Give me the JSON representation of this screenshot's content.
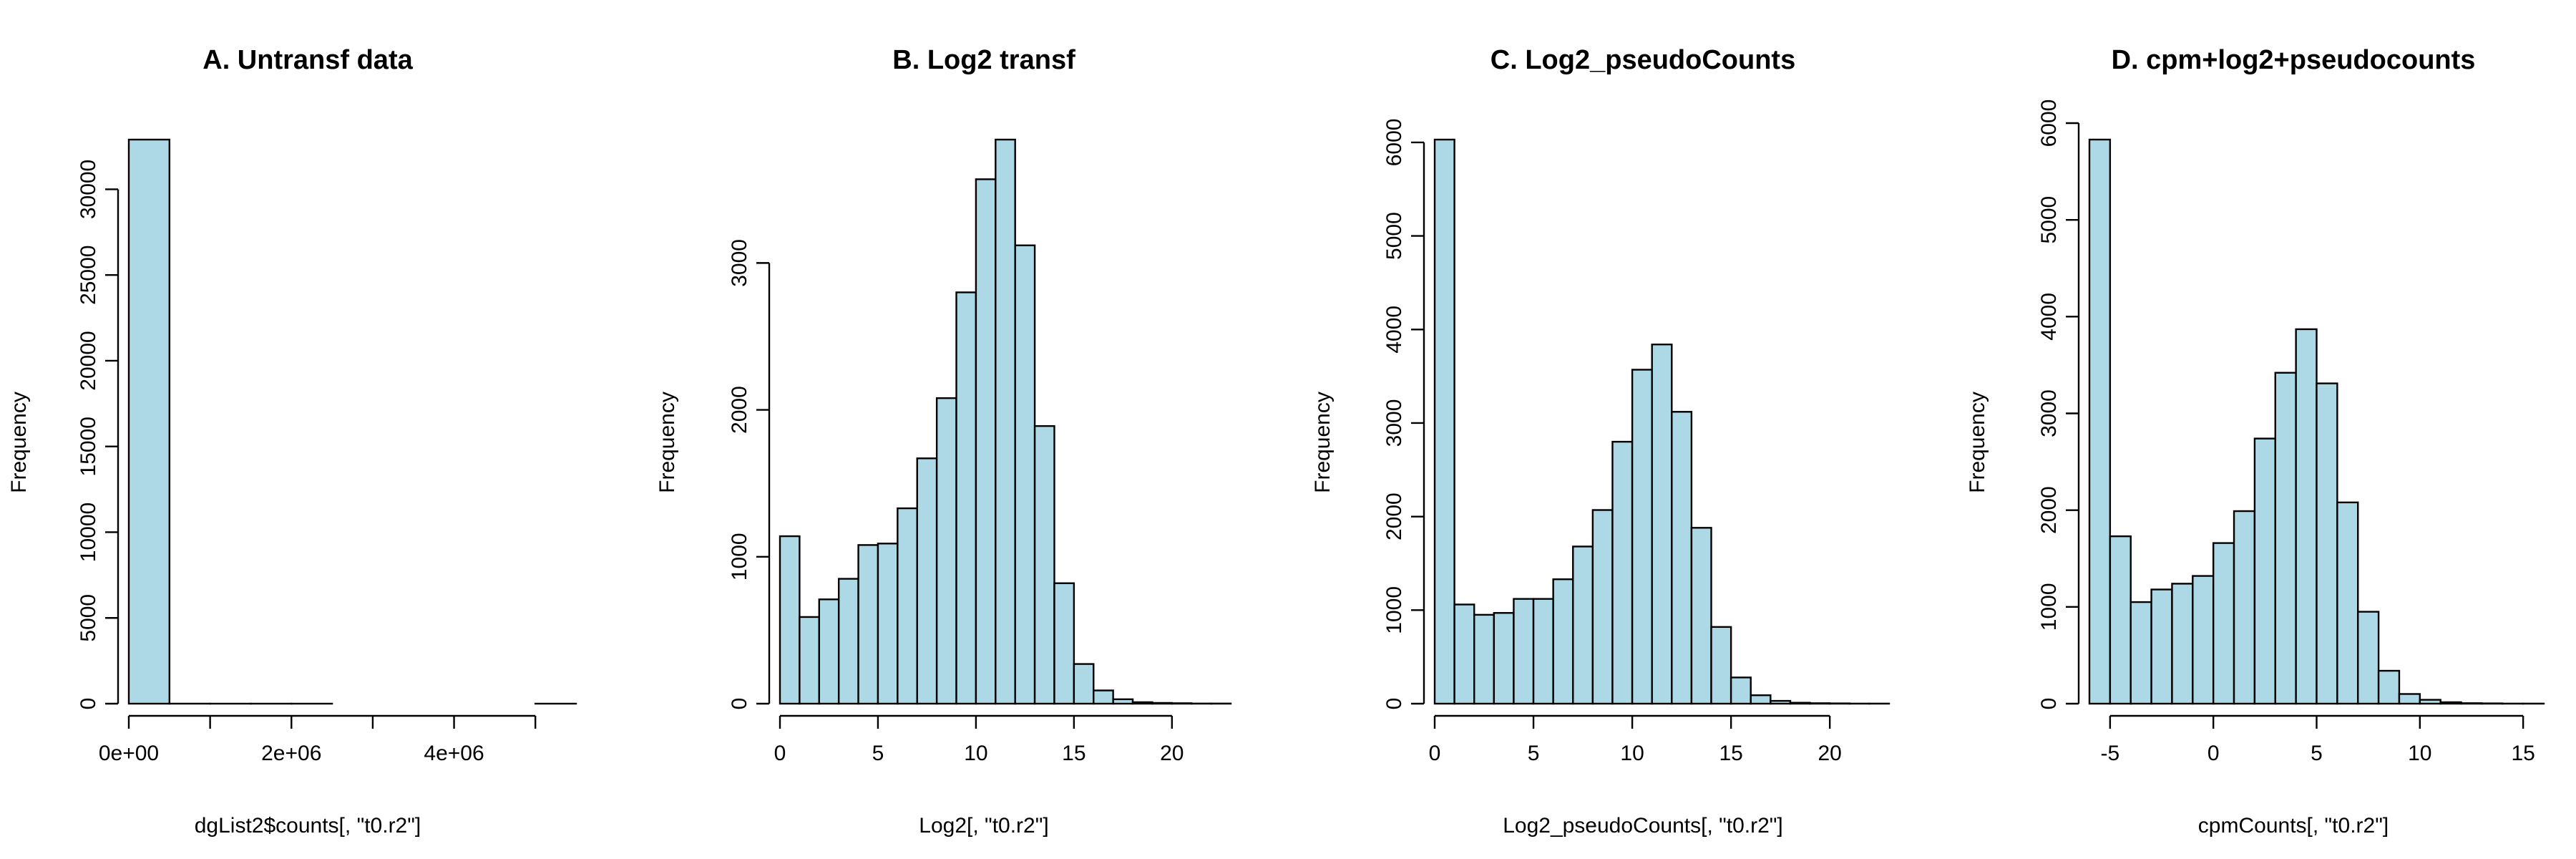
{
  "colors": {
    "bar_fill": "#add8e6",
    "bar_stroke": "#000000"
  },
  "chart_data": [
    {
      "type": "bar",
      "title": "A. Untransf data",
      "xlabel": "dgList2$counts[, \"t0.r2\"]",
      "ylabel": "Frequency",
      "bin_edges": [
        0,
        500000,
        1000000,
        1500000,
        2000000,
        2500000,
        3000000,
        3500000,
        4000000,
        4500000,
        5000000,
        5500000
      ],
      "values": [
        32900,
        2,
        1,
        1,
        1,
        0,
        0,
        0,
        0,
        0,
        1
      ],
      "xlim": [
        0,
        5500000
      ],
      "ylim": [
        0,
        32900
      ],
      "xticks": [
        0,
        1000000,
        2000000,
        3000000,
        4000000,
        5000000
      ],
      "xtick_labels": [
        "0e+00",
        "",
        "2e+06",
        "",
        "4e+06",
        ""
      ],
      "yticks": [
        0,
        5000,
        10000,
        15000,
        20000,
        25000,
        30000
      ],
      "ytick_labels": [
        "0",
        "5000",
        "10000",
        "15000",
        "20000",
        "25000",
        "30000"
      ]
    },
    {
      "type": "bar",
      "title": "B. Log2 transf",
      "xlabel": "Log2[, \"t0.r2\"]",
      "ylabel": "Frequency",
      "bin_edges": [
        0,
        1,
        2,
        3,
        4,
        5,
        6,
        7,
        8,
        9,
        10,
        11,
        12,
        13,
        14,
        15,
        16,
        17,
        18,
        19,
        20,
        21,
        22,
        23
      ],
      "values": [
        1140,
        590,
        710,
        850,
        1080,
        1090,
        1330,
        1670,
        2080,
        2800,
        3570,
        3840,
        3120,
        1890,
        820,
        270,
        90,
        30,
        10,
        5,
        3,
        1,
        1
      ],
      "xlim": [
        0,
        23
      ],
      "ylim": [
        0,
        3840
      ],
      "xticks": [
        0,
        5,
        10,
        15,
        20
      ],
      "xtick_labels": [
        "0",
        "5",
        "10",
        "15",
        "20"
      ],
      "yticks": [
        0,
        1000,
        2000,
        3000
      ],
      "ytick_labels": [
        "0",
        "1000",
        "2000",
        "3000"
      ]
    },
    {
      "type": "bar",
      "title": "C. Log2_pseudoCounts",
      "xlabel": "Log2_pseudoCounts[, \"t0.r2\"]",
      "ylabel": "Frequency",
      "bin_edges": [
        0,
        1,
        2,
        3,
        4,
        5,
        6,
        7,
        8,
        9,
        10,
        11,
        12,
        13,
        14,
        15,
        16,
        17,
        18,
        19,
        20,
        21,
        22,
        23
      ],
      "values": [
        6030,
        1060,
        950,
        970,
        1120,
        1120,
        1330,
        1680,
        2070,
        2800,
        3570,
        3840,
        3120,
        1880,
        820,
        280,
        90,
        30,
        10,
        5,
        3,
        1,
        1
      ],
      "xlim": [
        0,
        23
      ],
      "ylim": [
        0,
        6030
      ],
      "xticks": [
        0,
        5,
        10,
        15,
        20
      ],
      "xtick_labels": [
        "0",
        "5",
        "10",
        "15",
        "20"
      ],
      "yticks": [
        0,
        1000,
        2000,
        3000,
        4000,
        5000,
        6000
      ],
      "ytick_labels": [
        "0",
        "1000",
        "2000",
        "3000",
        "4000",
        "5000",
        "6000"
      ]
    },
    {
      "type": "bar",
      "title": "D. cpm+log2+pseudocounts",
      "xlabel": "cpmCounts[, \"t0.r2\"]",
      "ylabel": "Frequency",
      "bin_edges": [
        -6,
        -5,
        -4,
        -3,
        -2,
        -1,
        0,
        1,
        2,
        3,
        4,
        5,
        6,
        7,
        8,
        9,
        10,
        11,
        12,
        13,
        14,
        15,
        16
      ],
      "values": [
        5830,
        1730,
        1050,
        1180,
        1240,
        1320,
        1660,
        1990,
        2740,
        3420,
        3870,
        3310,
        2080,
        950,
        340,
        100,
        40,
        15,
        5,
        3,
        1,
        1
      ],
      "xlim": [
        -6,
        16
      ],
      "ylim": [
        0,
        6000
      ],
      "xticks": [
        -5,
        0,
        5,
        10,
        15
      ],
      "xtick_labels": [
        "-5",
        "0",
        "5",
        "10",
        "15"
      ],
      "yticks": [
        0,
        1000,
        2000,
        3000,
        4000,
        5000,
        6000
      ],
      "ytick_labels": [
        "0",
        "1000",
        "2000",
        "3000",
        "4000",
        "5000",
        "6000"
      ]
    }
  ]
}
